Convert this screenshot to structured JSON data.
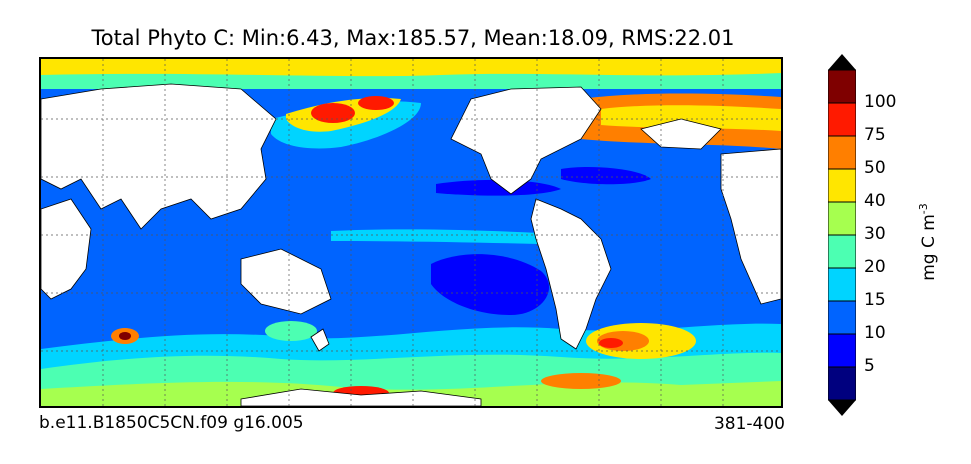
{
  "title": "Total Phyto C: Min:6.43, Max:185.57, Mean:18.09, RMS:22.01",
  "footer": {
    "case_name": "b.e11.B1850C5CN.f09 g16.005",
    "years": "381-400"
  },
  "colorbar": {
    "unit_base": "mg C m",
    "unit_exp": "-3",
    "ticks": [
      "5",
      "10",
      "15",
      "20",
      "30",
      "40",
      "50",
      "75",
      "100"
    ],
    "colors": [
      "#00007f",
      "#0000ff",
      "#0064ff",
      "#00d4ff",
      "#4cffb2",
      "#a6ff4f",
      "#ffe600",
      "#ff7f00",
      "#ff1a00",
      "#7f0000"
    ]
  },
  "map": {
    "projection": "global lat-lon, Pacific centred",
    "land_color": "#ffffff",
    "gridlines": "dotted"
  }
}
